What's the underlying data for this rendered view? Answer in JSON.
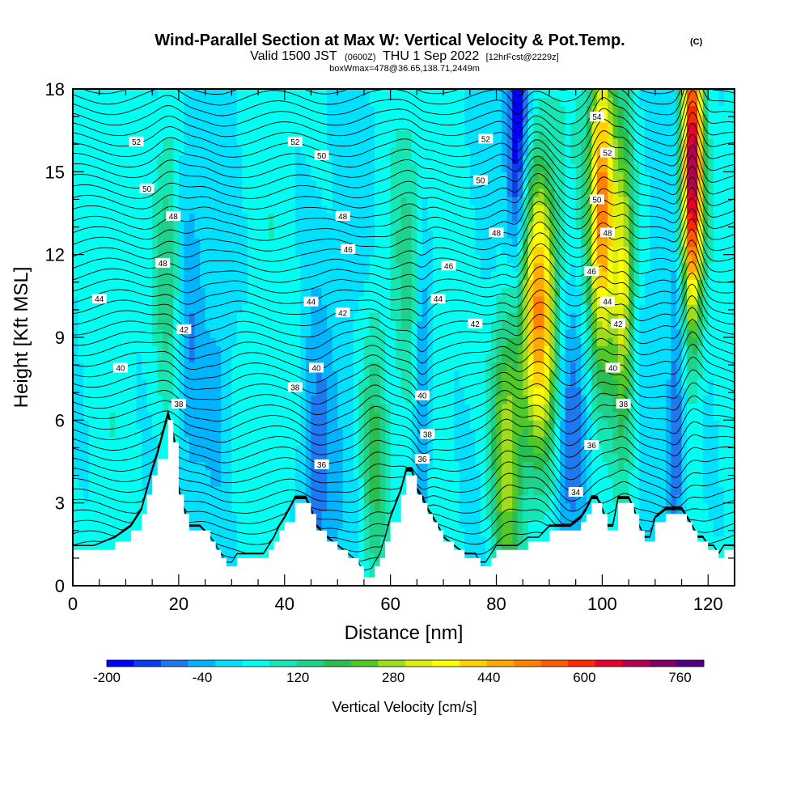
{
  "header": {
    "title": "Wind-Parallel Section at Max W: Vertical Velocity & Pot.Temp.",
    "copyright": "(C)",
    "valid_prefix": "Valid 1500 JST",
    "valid_utc": "(0600Z)",
    "valid_date": "THU 1 Sep 2022",
    "forecast": "[12hrFcst@2229z]",
    "box_info": "boxWmax=478@36.65,138.71,2449m"
  },
  "colors": {
    "levels": [
      "#0000ff",
      "#0a3cf0",
      "#1e78f0",
      "#00b4ff",
      "#00e1ff",
      "#00fff0",
      "#14e6b4",
      "#1ed28c",
      "#28be50",
      "#50c828",
      "#a0dc1e",
      "#dcf00a",
      "#ffff00",
      "#ffd200",
      "#ffaa00",
      "#ff8200",
      "#ff5a00",
      "#ff2800",
      "#e6002d",
      "#b40050",
      "#820064",
      "#500082"
    ],
    "terrain": "#ffffff",
    "contour": "#000000"
  },
  "chart_data": {
    "type": "heatmap",
    "title": "Wind-Parallel Section at Max W: Vertical Velocity & Pot.Temp.",
    "xlabel": "Distance [nm]",
    "ylabel": "Height [Kft MSL]",
    "xlim": [
      0,
      125
    ],
    "ylim": [
      0,
      18
    ],
    "xticks": [
      "0",
      "20",
      "40",
      "60",
      "80",
      "100",
      "120"
    ],
    "yticks": [
      "0",
      "3",
      "6",
      "9",
      "12",
      "15",
      "18"
    ],
    "colorbar": {
      "label": "Vertical Velocity [cm/s]",
      "ticks": [
        "-200",
        "-40",
        "120",
        "280",
        "440",
        "600",
        "760"
      ],
      "range": [
        -200,
        800
      ],
      "levels": 22
    },
    "terrain_profile": {
      "x": [
        0,
        4,
        8,
        11,
        13,
        14,
        15,
        16,
        18,
        19,
        20,
        21,
        22,
        24,
        26,
        27,
        28,
        29,
        30,
        31,
        32,
        34,
        36,
        37,
        38,
        39,
        40,
        42,
        44,
        45,
        46,
        48,
        50,
        52,
        54,
        55,
        56,
        57,
        58,
        59,
        60,
        62,
        63,
        64,
        65,
        66,
        67,
        68,
        69,
        70,
        72,
        74,
        76,
        77,
        78,
        79,
        80,
        82,
        84,
        86,
        88,
        90,
        92,
        94,
        96,
        97,
        98,
        99,
        100,
        101,
        102,
        103,
        104,
        105,
        106,
        107,
        108,
        109,
        110,
        112,
        114,
        115,
        116,
        117,
        118,
        119,
        120,
        121,
        122,
        123,
        125
      ],
      "height_kft": [
        1.3,
        1.3,
        1.6,
        2.0,
        2.6,
        3.3,
        4.0,
        4.6,
        6.0,
        5.2,
        3.3,
        2.6,
        2.0,
        2.0,
        1.6,
        1.3,
        1.0,
        0.7,
        0.7,
        1.0,
        1.0,
        1.0,
        1.0,
        1.3,
        1.6,
        2.0,
        2.3,
        3.0,
        3.0,
        2.6,
        2.0,
        1.6,
        1.3,
        1.0,
        0.7,
        0.3,
        0.3,
        0.7,
        1.0,
        1.6,
        2.3,
        3.3,
        4.0,
        4.0,
        3.3,
        3.0,
        2.6,
        2.3,
        2.0,
        1.6,
        1.3,
        1.0,
        1.0,
        0.7,
        0.7,
        1.0,
        1.3,
        1.3,
        1.3,
        1.6,
        1.6,
        2.0,
        2.0,
        2.0,
        2.3,
        2.6,
        3.0,
        3.0,
        2.6,
        2.0,
        2.0,
        3.0,
        3.0,
        3.0,
        2.6,
        2.0,
        1.6,
        1.6,
        2.3,
        2.6,
        2.6,
        2.6,
        2.3,
        2.0,
        1.6,
        1.6,
        1.3,
        1.3,
        1.0,
        1.3,
        1.3
      ]
    },
    "vertical_velocity_features_cm_s": [
      {
        "x": 18,
        "z": 12,
        "w": 140,
        "width_nm": 2.5
      },
      {
        "x": 22,
        "z": 9,
        "w": -60,
        "width_nm": 2.5
      },
      {
        "x": 28,
        "z": 9,
        "w": -50,
        "width_nm": 2.5
      },
      {
        "x": 46,
        "z": 4,
        "w": -120,
        "width_nm": 3
      },
      {
        "x": 57,
        "z": 5,
        "w": 160,
        "width_nm": 2.5
      },
      {
        "x": 66,
        "z": 7,
        "w": -160,
        "width_nm": 1.5
      },
      {
        "x": 63,
        "z": 12,
        "w": 80,
        "width_nm": 3
      },
      {
        "x": 82,
        "z": 5,
        "w": 280,
        "width_nm": 3
      },
      {
        "x": 84,
        "z": 16,
        "w": -240,
        "width_nm": 2
      },
      {
        "x": 88,
        "z": 10,
        "w": 460,
        "width_nm": 3.5
      },
      {
        "x": 94,
        "z": 5,
        "w": -160,
        "width_nm": 3
      },
      {
        "x": 100,
        "z": 14,
        "w": 470,
        "width_nm": 2.5
      },
      {
        "x": 104,
        "z": 11,
        "w": 300,
        "width_nm": 2
      },
      {
        "x": 114,
        "z": 6,
        "w": -120,
        "width_nm": 1.5
      },
      {
        "x": 117,
        "z": 15,
        "w": 700,
        "width_nm": 2
      }
    ],
    "theta_contour_labels": [
      {
        "label": "52",
        "x": 12,
        "z": 16.1
      },
      {
        "label": "50",
        "x": 14,
        "z": 14.4
      },
      {
        "label": "48",
        "x": 19,
        "z": 13.4
      },
      {
        "label": "48",
        "x": 17,
        "z": 11.7
      },
      {
        "label": "44",
        "x": 5,
        "z": 10.4
      },
      {
        "label": "42",
        "x": 21,
        "z": 9.3
      },
      {
        "label": "40",
        "x": 9,
        "z": 7.9
      },
      {
        "label": "38",
        "x": 20,
        "z": 6.6
      },
      {
        "label": "52",
        "x": 42,
        "z": 16.1
      },
      {
        "label": "50",
        "x": 47,
        "z": 15.6
      },
      {
        "label": "48",
        "x": 51,
        "z": 13.4
      },
      {
        "label": "46",
        "x": 52,
        "z": 12.2
      },
      {
        "label": "44",
        "x": 45,
        "z": 10.3
      },
      {
        "label": "42",
        "x": 51,
        "z": 9.9
      },
      {
        "label": "40",
        "x": 46,
        "z": 7.9
      },
      {
        "label": "38",
        "x": 42,
        "z": 7.2
      },
      {
        "label": "36",
        "x": 47,
        "z": 4.4
      },
      {
        "label": "52",
        "x": 78,
        "z": 16.2
      },
      {
        "label": "50",
        "x": 77,
        "z": 14.7
      },
      {
        "label": "48",
        "x": 80,
        "z": 12.8
      },
      {
        "label": "46",
        "x": 71,
        "z": 11.6
      },
      {
        "label": "44",
        "x": 69,
        "z": 10.4
      },
      {
        "label": "42",
        "x": 76,
        "z": 9.5
      },
      {
        "label": "40",
        "x": 66,
        "z": 6.9
      },
      {
        "label": "38",
        "x": 67,
        "z": 5.5
      },
      {
        "label": "36",
        "x": 66,
        "z": 4.6
      },
      {
        "label": "54",
        "x": 99,
        "z": 17.0
      },
      {
        "label": "52",
        "x": 101,
        "z": 15.7
      },
      {
        "label": "50",
        "x": 99,
        "z": 14.0
      },
      {
        "label": "48",
        "x": 101,
        "z": 12.8
      },
      {
        "label": "46",
        "x": 98,
        "z": 11.4
      },
      {
        "label": "44",
        "x": 101,
        "z": 10.3
      },
      {
        "label": "42",
        "x": 103,
        "z": 9.5
      },
      {
        "label": "40",
        "x": 102,
        "z": 7.9
      },
      {
        "label": "38",
        "x": 104,
        "z": 6.6
      },
      {
        "label": "36",
        "x": 98,
        "z": 5.1
      },
      {
        "label": "34",
        "x": 95,
        "z": 3.4
      }
    ],
    "grid": false
  }
}
